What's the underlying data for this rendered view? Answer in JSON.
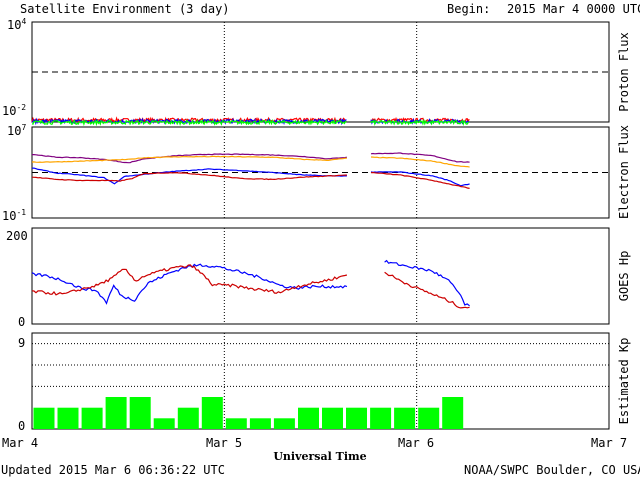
{
  "header": {
    "title": "Satellite Environment (3 day)",
    "begin_label": "Begin:",
    "begin_value": "2015 Mar 4 0000 UTC"
  },
  "footer": {
    "updated": "Updated 2015 Mar  6 06:36:22 UTC",
    "credit": "NOAA/SWPC Boulder, CO USA",
    "xlabel": "Universal Time"
  },
  "chart_data": [
    {
      "type": "line",
      "ylabel": "Proton Flux",
      "yscale": "log",
      "ylim": [
        0.01,
        10000
      ],
      "y_tick_labels": [
        {
          "base": "10",
          "exp": "4"
        },
        {
          "base": "10",
          "exp": "-2"
        }
      ],
      "x_range_hours": [
        0,
        72
      ],
      "data_gap_hours": [
        39.3,
        42.3
      ],
      "data_end_hours": 54.6,
      "threshold": 10,
      "threshold_style": "dashed",
      "series": [
        {
          "color": "#ff0000",
          "level": 0.013
        },
        {
          "color": "#0000ff",
          "level": 0.011
        },
        {
          "color": "#00ff00",
          "level": 0.0095
        }
      ]
    },
    {
      "type": "line",
      "ylabel": "Electron Flux",
      "yscale": "log",
      "ylim": [
        0.1,
        10000000
      ],
      "y_tick_labels": [
        {
          "base": "10",
          "exp": "7"
        },
        {
          "base": "10",
          "exp": "-1"
        }
      ],
      "threshold": 1000,
      "threshold_style": "dashed",
      "series": [
        {
          "color": "#800080",
          "points": [
            [
              0,
              40000
            ],
            [
              3,
              22000
            ],
            [
              6,
              20000
            ],
            [
              9,
              14000
            ],
            [
              12,
              7000
            ],
            [
              14,
              16000
            ],
            [
              18,
              30000
            ],
            [
              22,
              40000
            ],
            [
              26,
              40000
            ],
            [
              30,
              35000
            ],
            [
              34,
              25000
            ],
            [
              37,
              16000
            ],
            [
              39.3,
              22000
            ],
            [
              42.3,
              45000
            ],
            [
              46,
              50000
            ],
            [
              50,
              30000
            ],
            [
              53,
              9000
            ],
            [
              54.6,
              8000
            ]
          ]
        },
        {
          "color": "#ffa500",
          "points": [
            [
              0,
              8000
            ],
            [
              4,
              9000
            ],
            [
              8,
              11000
            ],
            [
              12,
              14000
            ],
            [
              14,
              20000
            ],
            [
              18,
              24000
            ],
            [
              24,
              25000
            ],
            [
              30,
              22000
            ],
            [
              34,
              14000
            ],
            [
              37,
              12000
            ],
            [
              39.3,
              18000
            ],
            [
              42.3,
              22000
            ],
            [
              46,
              18000
            ],
            [
              50,
              10000
            ],
            [
              53,
              4000
            ],
            [
              54.6,
              3000
            ]
          ]
        },
        {
          "color": "#0000ff",
          "points": [
            [
              0,
              2500
            ],
            [
              3,
              900
            ],
            [
              6,
              600
            ],
            [
              9,
              350
            ],
            [
              10.3,
              100
            ],
            [
              11.5,
              450
            ],
            [
              14,
              700
            ],
            [
              18,
              1300
            ],
            [
              22,
              2000
            ],
            [
              26,
              1500
            ],
            [
              30,
              1000
            ],
            [
              34,
              600
            ],
            [
              37,
              500
            ],
            [
              39.3,
              500
            ],
            [
              42.3,
              1100
            ],
            [
              46,
              1100
            ],
            [
              50,
              500
            ],
            [
              52,
              200
            ],
            [
              53.5,
              70
            ],
            [
              54.6,
              100
            ]
          ]
        },
        {
          "color": "#cc0000",
          "points": [
            [
              0,
              400
            ],
            [
              3,
              250
            ],
            [
              6,
              200
            ],
            [
              9,
              200
            ],
            [
              11,
              180
            ],
            [
              12.5,
              300
            ],
            [
              14,
              800
            ],
            [
              18,
              1000
            ],
            [
              22,
              600
            ],
            [
              26,
              300
            ],
            [
              30,
              250
            ],
            [
              34,
              400
            ],
            [
              37,
              500
            ],
            [
              39.3,
              600
            ],
            [
              42.3,
              1000
            ],
            [
              46,
              600
            ],
            [
              50,
              200
            ],
            [
              53,
              70
            ],
            [
              54.6,
              40
            ]
          ]
        }
      ]
    },
    {
      "type": "line",
      "ylabel": "GOES Hp",
      "ylim": [
        0,
        200
      ],
      "y_tick_labels": [
        "200",
        "0"
      ],
      "series": [
        {
          "color": "#0000ff",
          "points": [
            [
              0,
              104
            ],
            [
              2,
              100
            ],
            [
              4,
              90
            ],
            [
              6,
              75
            ],
            [
              8,
              70
            ],
            [
              9.3,
              45
            ],
            [
              10.2,
              80
            ],
            [
              11.2,
              58
            ],
            [
              12.8,
              50
            ],
            [
              13.2,
              60
            ],
            [
              14.5,
              85
            ],
            [
              17,
              105
            ],
            [
              19,
              118
            ],
            [
              21,
              123
            ],
            [
              23,
              120
            ],
            [
              25,
              112
            ],
            [
              27,
              104
            ],
            [
              29,
              94
            ],
            [
              31,
              80
            ],
            [
              33,
              75
            ],
            [
              35,
              78
            ],
            [
              37,
              78
            ],
            [
              39.3,
              78
            ],
            [
              41.5,
              115
            ],
            [
              44,
              130
            ],
            [
              47,
              120
            ],
            [
              50,
              110
            ],
            [
              52,
              90
            ],
            [
              53.5,
              60
            ],
            [
              54,
              40
            ],
            [
              54.6,
              38
            ]
          ]
        },
        {
          "color": "#cc0000",
          "points": [
            [
              0,
              68
            ],
            [
              2,
              65
            ],
            [
              4,
              62
            ],
            [
              6,
              72
            ],
            [
              8,
              80
            ],
            [
              10,
              95
            ],
            [
              11.5,
              115
            ],
            [
              13,
              90
            ],
            [
              14,
              100
            ],
            [
              16,
              110
            ],
            [
              18,
              118
            ],
            [
              20,
              121
            ],
            [
              21.5,
              100
            ],
            [
              22.5,
              82
            ],
            [
              25,
              80
            ],
            [
              28,
              72
            ],
            [
              31,
              66
            ],
            [
              33,
              78
            ],
            [
              35,
              85
            ],
            [
              37,
              92
            ],
            [
              39.3,
              102
            ],
            [
              41.5,
              110
            ],
            [
              44,
              108
            ],
            [
              46,
              90
            ],
            [
              48,
              75
            ],
            [
              50,
              62
            ],
            [
              52,
              48
            ],
            [
              53.5,
              35
            ],
            [
              54.6,
              35
            ]
          ]
        }
      ]
    },
    {
      "type": "bar",
      "ylabel": "Estimated Kp",
      "ylim": [
        0,
        9
      ],
      "y_tick_labels": [
        "9",
        "0"
      ],
      "grid_levels": [
        9,
        8,
        6,
        4
      ],
      "bar_color": "#00ff00",
      "bar_width_hours": 3,
      "values": [
        2,
        2,
        2,
        3,
        3,
        1,
        2,
        3,
        1,
        1,
        1,
        2,
        2,
        2,
        2,
        2,
        2,
        3
      ]
    }
  ],
  "x_axis": {
    "x_range_hours": [
      0,
      72
    ],
    "day_markers_hours": [
      24,
      48
    ],
    "tick_labels": [
      "Mar 4",
      "Mar 5",
      "Mar 6",
      "Mar 7"
    ]
  }
}
